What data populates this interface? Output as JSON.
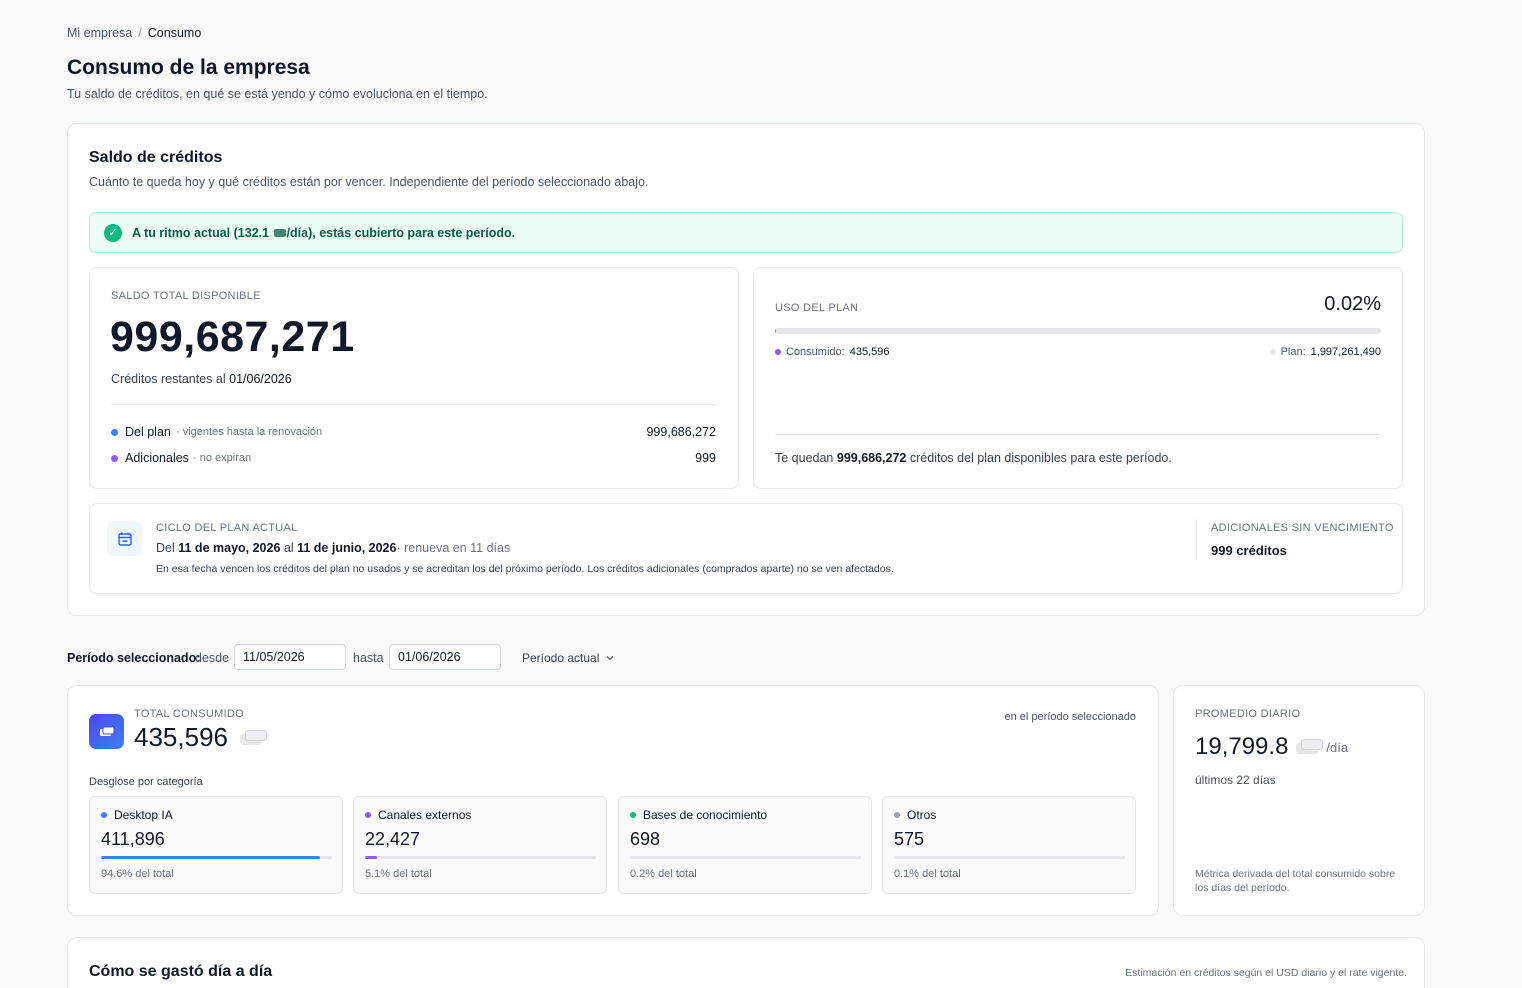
{
  "breadcrumb": {
    "parent": "Mi empresa",
    "separator": "/",
    "current": "Consumo"
  },
  "header": {
    "title": "Consumo de la empresa",
    "subtitle": "Tu saldo de créditos, en qué se está yendo y cómo evoluciona en el tiempo."
  },
  "balance": {
    "title": "Saldo de créditos",
    "subtitle": "Cuánto te queda hoy y qué créditos están por vencer. Independiente del período seleccionado abajo.",
    "alert_prefix": "A tu ritmo actual (132.1",
    "alert_suffix": "/día), estás cubierto para este período.",
    "total": {
      "label": "Saldo total disponible",
      "value": "999,687,271",
      "remaining_prefix": "Créditos restantes al",
      "remaining_date": "01/06/2026",
      "rows": [
        {
          "name": "Del plan",
          "note": "· vigentes hasta la renovación",
          "value": "999,686,272",
          "color": "#3b82f6"
        },
        {
          "name": "Adicionales",
          "note": "· no expiran",
          "value": "999",
          "color": "#8b5cf6"
        }
      ]
    },
    "plan_usage": {
      "label": "Uso del plan",
      "percent": "0.02%",
      "fraction": 0.0002,
      "consumed_label": "Consumido:",
      "consumed_value": "435,596",
      "plan_label": "Plan:",
      "plan_value": "1,997,261,490",
      "consumed_color": "#8b5cf6",
      "plan_color": "#e5e7eb",
      "left_prefix": "Te quedan",
      "left_value": "999,686,272",
      "left_suffix": "créditos del plan disponibles para este período."
    },
    "cycle": {
      "label": "Ciclo del plan actual",
      "from_prefix": "Del",
      "start": "11 de mayo, 2026",
      "mid": "al",
      "end": "11 de junio, 2026",
      "renews": "· renueva en 11 días",
      "note": "En esa fecha vencen los créditos del plan no usados y se acreditan los del próximo período. Los créditos adicionales (comprados aparte) no se ven afectados.",
      "extra_label": "Adicionales sin vencimiento",
      "extra_value": "999 créditos"
    }
  },
  "period": {
    "label": "Período seleccionado:",
    "from_label": "desde",
    "from_value": "11/05/2026",
    "to_label": "hasta",
    "to_value": "01/06/2026",
    "preset": "Período actual"
  },
  "total_consumed": {
    "label": "Total consumido",
    "value": "435,596",
    "context": "en el período seleccionado",
    "breakdown_title": "Desglose por categoría",
    "categories": [
      {
        "name": "Desktop IA",
        "value": "411,896",
        "pct": "94.6% del total",
        "fraction": 0.946,
        "color": "#3b82f6"
      },
      {
        "name": "Canales externos",
        "value": "22,427",
        "pct": "5.1% del total",
        "fraction": 0.051,
        "color": "#8b5cf6"
      },
      {
        "name": "Bases de conocimiento",
        "value": "698",
        "pct": "0.2% del total",
        "fraction": 0.002,
        "color": "#10b981"
      },
      {
        "name": "Otros",
        "value": "575",
        "pct": "0.1% del total",
        "fraction": 0.001,
        "color": "#9ca3af"
      }
    ]
  },
  "daily_avg": {
    "label": "Promedio diario",
    "value": "19,799.8",
    "unit": "/día",
    "period": "últimos 22 días",
    "note": "Métrica derivada del total consumido sobre los días del período."
  },
  "daily_section": {
    "title": "Cómo se gastó día a día",
    "note": "Estimación en créditos según el USD diario y el rate vigente."
  }
}
